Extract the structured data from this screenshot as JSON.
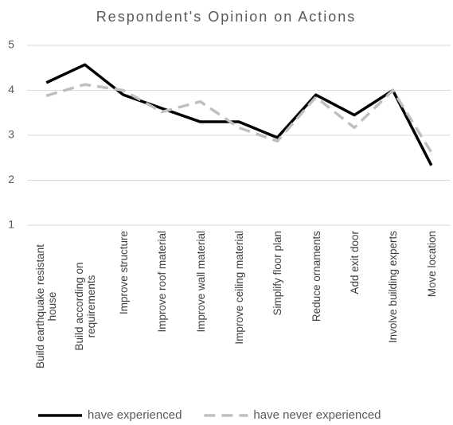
{
  "chart_data": {
    "type": "line",
    "title": "Respondent's Opinion on Actions",
    "categories": [
      "Build earthquake resistant house",
      "Build according on requirements",
      "Improve structure",
      "Improve roof material",
      "Improve wall material",
      "Improve ceiling material",
      "Simplify floor plan",
      "Reduce ornaments",
      "Add exit door",
      "Involve building experts",
      "Move location"
    ],
    "series": [
      {
        "name": "have experienced",
        "color": "#000000",
        "dashed": false,
        "values": [
          4.17,
          4.57,
          3.9,
          3.6,
          3.3,
          3.3,
          2.95,
          3.9,
          3.45,
          4.0,
          2.33
        ]
      },
      {
        "name": "have never experienced",
        "color": "#bfbfbf",
        "dashed": true,
        "values": [
          3.88,
          4.13,
          4.0,
          3.52,
          3.75,
          3.17,
          2.87,
          3.85,
          3.17,
          4.0,
          2.62
        ]
      }
    ],
    "ylim": [
      1,
      5
    ],
    "yticks": [
      1,
      2,
      3,
      4,
      5
    ],
    "grid": true,
    "legend": "bottom"
  }
}
